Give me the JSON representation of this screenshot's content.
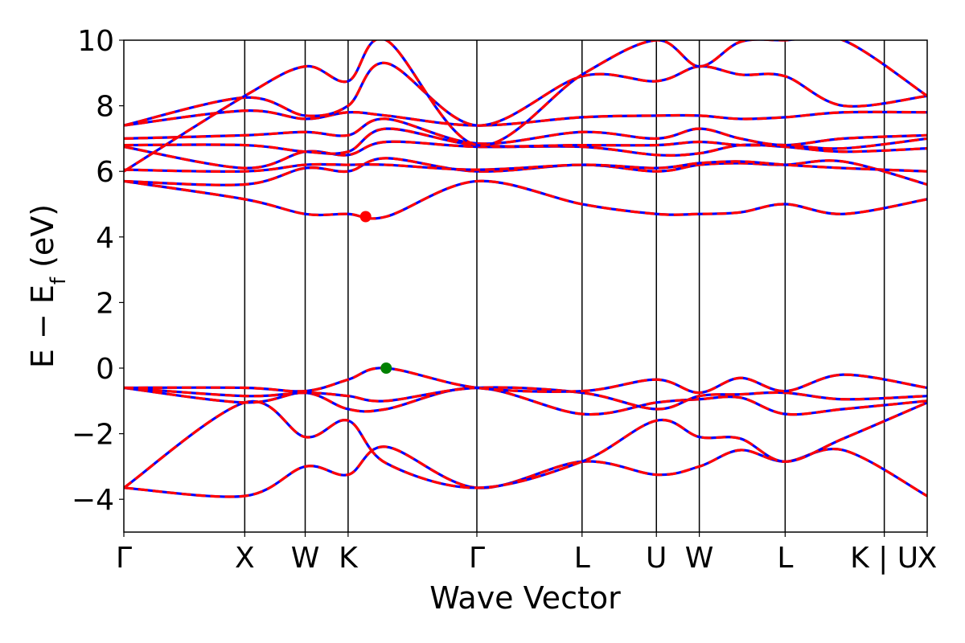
{
  "chart_data": {
    "type": "line",
    "title": "",
    "xlabel": "Wave Vector",
    "ylabel": {
      "main": "E − E",
      "sub": "f",
      "unit": " (eV)"
    },
    "ylim": [
      -5,
      10
    ],
    "yticks": [
      -4,
      -2,
      0,
      2,
      4,
      6,
      8,
      10
    ],
    "ytick_labels": [
      "−4",
      "−2",
      "0",
      "2",
      "4",
      "6",
      "8",
      "10"
    ],
    "k_points": [
      {
        "label": "Γ",
        "x": 0.0
      },
      {
        "label": "X",
        "x": 1.0
      },
      {
        "label": "W",
        "x": 1.5
      },
      {
        "label": "K",
        "x": 1.855
      },
      {
        "label": "Γ",
        "x": 2.92
      },
      {
        "label": "L",
        "x": 3.79
      },
      {
        "label": "U",
        "x": 4.405
      },
      {
        "label": "W",
        "x": 4.76
      },
      {
        "label": "L",
        "x": 5.47
      },
      {
        "label": "K | U",
        "x": 6.29
      },
      {
        "label": "X",
        "x": 6.645
      }
    ],
    "xlim": [
      0,
      6.645
    ],
    "grid": false,
    "legend": "none",
    "colors": {
      "line_blue": "#0000ff",
      "line_red": "#ff0000",
      "cbm_marker": "#ff0000",
      "vbm_marker": "#008000"
    },
    "markers": [
      {
        "name": "CBM",
        "x": 2.0,
        "y": 4.62,
        "color": "#ff0000"
      },
      {
        "name": "VBM",
        "x": 2.17,
        "y": 0.0,
        "color": "#008000"
      }
    ],
    "series": [
      {
        "values": [
          -3.65,
          -3.9,
          -3.0,
          -3.25,
          -2.4,
          -3.65,
          -2.85,
          -3.25,
          -3.0,
          -2.5,
          -2.85,
          -2.5,
          -3.9
        ]
      },
      {
        "values": [
          -3.65,
          -1.05,
          -2.1,
          -1.6,
          -2.9,
          -3.65,
          -2.85,
          -1.6,
          -2.1,
          -2.15,
          -2.85,
          -2.15,
          -1.05
        ]
      },
      {
        "values": [
          -0.6,
          -1.05,
          -0.75,
          -1.25,
          -1.25,
          -0.6,
          -1.4,
          -1.05,
          -0.95,
          -0.9,
          -1.4,
          -1.25,
          -1.0
        ]
      },
      {
        "values": [
          -0.6,
          -0.85,
          -0.75,
          -0.85,
          -1.0,
          -0.6,
          -0.75,
          -1.25,
          -0.85,
          -0.8,
          -0.75,
          -0.95,
          -0.85
        ]
      },
      {
        "values": [
          -0.6,
          -0.6,
          -0.7,
          -0.35,
          0.0,
          -0.6,
          -0.7,
          -0.35,
          -0.75,
          -0.3,
          -0.7,
          -0.2,
          -0.6
        ]
      },
      {
        "values": [
          5.7,
          5.15,
          4.7,
          4.7,
          4.62,
          5.7,
          5.0,
          4.7,
          4.7,
          4.75,
          5.0,
          4.7,
          5.15
        ]
      },
      {
        "values": [
          5.7,
          5.6,
          6.1,
          6.0,
          6.4,
          6.0,
          6.2,
          6.0,
          6.2,
          6.25,
          6.2,
          6.3,
          5.6
        ]
      },
      {
        "values": [
          6.05,
          6.0,
          6.2,
          6.2,
          6.2,
          6.05,
          6.2,
          6.1,
          6.25,
          6.3,
          6.2,
          6.1,
          6.0
        ]
      },
      {
        "values": [
          6.75,
          6.1,
          6.6,
          6.5,
          6.9,
          6.75,
          6.75,
          6.5,
          6.55,
          6.8,
          6.75,
          6.6,
          6.7
        ]
      },
      {
        "values": [
          6.8,
          6.8,
          6.6,
          6.6,
          7.3,
          6.8,
          6.8,
          6.8,
          6.9,
          6.8,
          6.8,
          6.7,
          7.0
        ]
      },
      {
        "values": [
          7.0,
          7.1,
          7.2,
          7.1,
          7.6,
          6.85,
          7.2,
          7.0,
          7.3,
          7.0,
          6.8,
          7.0,
          7.1
        ]
      },
      {
        "values": [
          7.4,
          7.85,
          7.6,
          7.8,
          7.7,
          7.4,
          7.65,
          7.7,
          7.7,
          7.6,
          7.65,
          7.8,
          7.8
        ]
      },
      {
        "values": [
          7.4,
          8.25,
          7.7,
          8.0,
          9.3,
          7.4,
          8.9,
          8.75,
          9.2,
          8.95,
          8.9,
          8.0,
          8.3
        ]
      },
      {
        "values": [
          6.0,
          8.3,
          9.2,
          8.75,
          10.0,
          6.8,
          8.95,
          10.0,
          9.2,
          9.95,
          10.0,
          10.0,
          8.3
        ]
      }
    ],
    "series_x": [
      0.0,
      1.0,
      1.5,
      1.855,
      2.17,
      2.92,
      3.79,
      4.405,
      4.76,
      5.1,
      5.47,
      5.95,
      6.645
    ]
  }
}
